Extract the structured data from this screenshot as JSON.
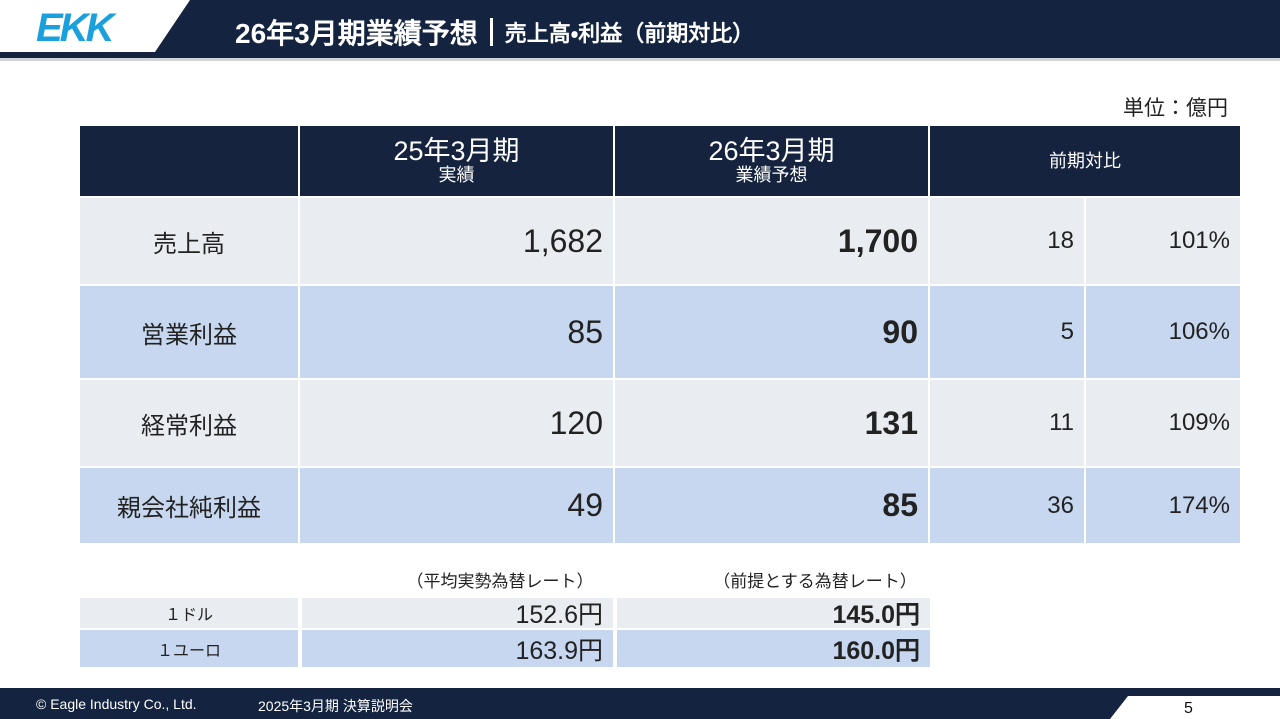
{
  "header": {
    "logo": "EKK",
    "title": "26年3月期業績予想",
    "subtitle": "売上高・利益（前期対比）"
  },
  "unit": "単位：億円",
  "table": {
    "columns": [
      {
        "top": "25年3月期",
        "bottom": "実績"
      },
      {
        "top": "26年3月期",
        "bottom": "業績予想"
      },
      {
        "top": "前期対比"
      }
    ],
    "rows": [
      [
        "売上高",
        "1,682",
        "1,700",
        "18",
        "101%"
      ],
      [
        "営業利益",
        "85",
        "90",
        "5",
        "106%"
      ],
      [
        "経常利益",
        "120",
        "131",
        "11",
        "109%"
      ],
      [
        "親会社純利益",
        "49",
        "85",
        "36",
        "174%"
      ]
    ]
  },
  "rates": {
    "notes": [
      "（平均実勢為替レート）",
      "（前提とする為替レート）"
    ],
    "rows": [
      [
        "１ドル",
        "152.6円",
        "145.0円"
      ],
      [
        "１ユーロ",
        "163.9円",
        "160.0円"
      ]
    ]
  },
  "footer": {
    "copyright": "© Eagle Industry Co., Ltd.",
    "event": "2025年3月期 決算説明会",
    "page": "5"
  }
}
